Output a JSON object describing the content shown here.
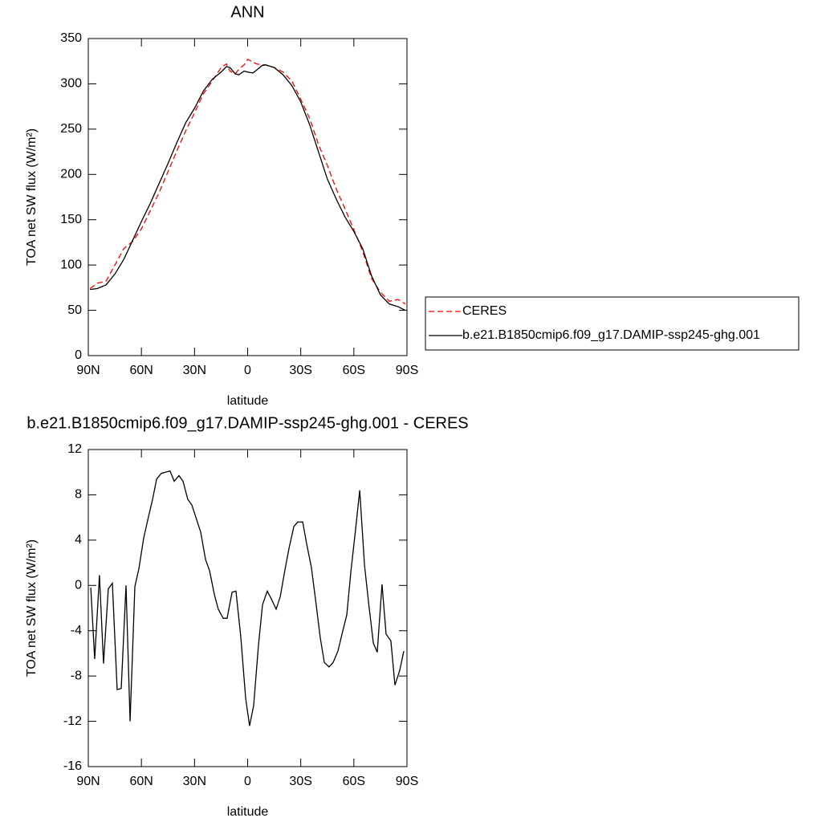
{
  "chart_data": [
    {
      "type": "line",
      "title": "ANN",
      "xlabel": "latitude",
      "ylabel": "TOA net SW flux (W/m²)",
      "xlim": [
        90,
        -90
      ],
      "xticks": [
        {
          "value": 90,
          "label": "90N"
        },
        {
          "value": 60,
          "label": "60N"
        },
        {
          "value": 30,
          "label": "30N"
        },
        0,
        {
          "value": -30,
          "label": "30S"
        },
        {
          "value": -60,
          "label": "60S"
        },
        {
          "value": -90,
          "label": "90S"
        }
      ],
      "ylim": [
        0,
        350
      ],
      "yticks": [
        0,
        50,
        100,
        150,
        200,
        250,
        300,
        350
      ],
      "x": [
        89,
        85,
        80,
        75,
        70,
        65,
        60,
        55,
        50,
        45,
        40,
        35,
        30,
        25,
        20,
        15,
        12,
        10,
        7,
        5,
        2,
        0,
        -3,
        -5,
        -8,
        -10,
        -15,
        -20,
        -25,
        -30,
        -35,
        -40,
        -45,
        -50,
        -55,
        -60,
        -65,
        -70,
        -75,
        -80,
        -85,
        -89
      ],
      "series": [
        {
          "name": "CERES",
          "color": "#ff0000",
          "dashed": true,
          "values": [
            74,
            80,
            82,
            100,
            118,
            126,
            140,
            160,
            180,
            203,
            226,
            248,
            268,
            289,
            303,
            318,
            322,
            314,
            311,
            316,
            321,
            327,
            324,
            322,
            321,
            321,
            318,
            313,
            303,
            283,
            262,
            233,
            210,
            184,
            162,
            139,
            115,
            85,
            70,
            60,
            62,
            57
          ]
        },
        {
          "name": "b.e21.B1850cmip6.f09_g17.DAMIP-ssp245-ghg.001",
          "color": "#000000",
          "dashed": false,
          "values": [
            73,
            74,
            78,
            90,
            106,
            127,
            148,
            168,
            190,
            212,
            235,
            257,
            273,
            292,
            305,
            313,
            319,
            318,
            311,
            310,
            314,
            313,
            312,
            315,
            320,
            321,
            318,
            310,
            298,
            280,
            255,
            225,
            195,
            173,
            153,
            137,
            118,
            88,
            67,
            57,
            54,
            50
          ]
        }
      ]
    },
    {
      "type": "line",
      "title": "b.e21.B1850cmip6.f09_g17.DAMIP-ssp245-ghg.001 - CERES",
      "xlabel": "latitude",
      "ylabel": "TOA net SW flux (W/m²)",
      "xlim": [
        90,
        -90
      ],
      "xticks": [
        {
          "value": 90,
          "label": "90N"
        },
        {
          "value": 60,
          "label": "60N"
        },
        {
          "value": 30,
          "label": "30N"
        },
        0,
        {
          "value": -30,
          "label": "30S"
        },
        {
          "value": -60,
          "label": "60S"
        },
        {
          "value": -90,
          "label": "90S"
        }
      ],
      "ylim": [
        -16,
        12
      ],
      "yticks": [
        -16,
        -12,
        -8,
        -4,
        0,
        4,
        8,
        12
      ],
      "x": [
        88.6,
        86.4,
        83.7,
        81.4,
        78.7,
        76.4,
        73.7,
        71.4,
        68.7,
        66.4,
        63.7,
        61.4,
        58.7,
        56.4,
        53.7,
        51.4,
        48.7,
        46.5,
        43.8,
        41.5,
        38.8,
        36.5,
        33.8,
        31.5,
        28.8,
        26.5,
        23.8,
        21.5,
        18.8,
        16.6,
        13.8,
        11.6,
        8.8,
        6.6,
        3.9,
        1.1,
        -1.1,
        -3.4,
        -6.1,
        -8.4,
        -11.1,
        -13.4,
        -16.1,
        -18.4,
        -21.1,
        -23.4,
        -26.1,
        -28.3,
        -31.1,
        -33.3,
        -36.0,
        -38.3,
        -41.0,
        -43.3,
        -46.0,
        -48.3,
        -51.0,
        -53.3,
        -56.0,
        -58.3,
        -61.0,
        -63.3,
        -66.0,
        -68.3,
        -71.0,
        -73.2,
        -75.9,
        -78.2,
        -80.9,
        -83.2,
        -85.9,
        -88.2
      ],
      "color": "#000000",
      "values": [
        -0.2,
        -6.5,
        0.9,
        -6.9,
        -0.3,
        0.2,
        -9.2,
        -9.1,
        0,
        -12,
        -0.1,
        1.5,
        4.2,
        5.8,
        7.6,
        9.4,
        9.9,
        10,
        10.1,
        9.2,
        9.7,
        9.2,
        7.6,
        7.1,
        5.8,
        4.7,
        2.3,
        1.3,
        -0.8,
        -2.1,
        -2.9,
        -2.9,
        -0.6,
        -0.5,
        -4.5,
        -10,
        -12.4,
        -10.6,
        -5.3,
        -1.7,
        -0.5,
        -1.2,
        -2.1,
        -1,
        1.4,
        3.3,
        5.2,
        5.6,
        5.6,
        3.7,
        1.6,
        -1.2,
        -4.6,
        -6.8,
        -7.2,
        -6.8,
        -5.8,
        -4.3,
        -2.6,
        1.2,
        5,
        8.4,
        1.8,
        -1.5,
        -5.1,
        -5.9,
        0.1,
        -4.3,
        -4.9,
        -8.8,
        -7.5,
        -5.8
      ]
    }
  ]
}
